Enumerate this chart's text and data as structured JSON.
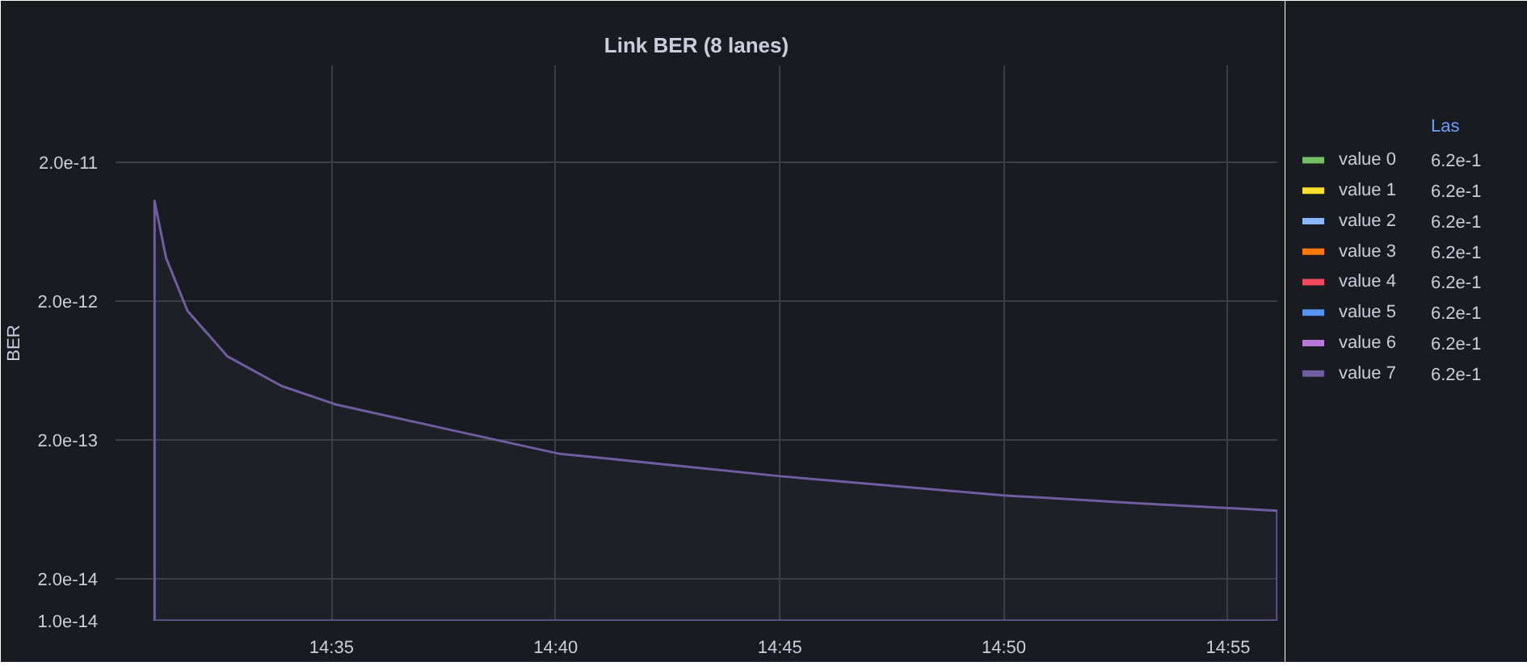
{
  "chart_data": {
    "type": "area",
    "title": "Link BER (8 lanes)",
    "ylabel": "BER",
    "legend_title": "Las",
    "x": [
      14.5175,
      14.5218,
      14.5298,
      14.5447,
      14.5648,
      14.5852,
      14.6263,
      14.6677,
      14.75,
      14.8333,
      14.8847,
      14.935
    ],
    "series": [
      {
        "name": "value 0",
        "color": "#73bf69",
        "values": [
          null,
          null,
          null,
          null,
          null,
          null,
          null,
          null,
          null,
          null,
          null,
          null
        ]
      },
      {
        "name": "value 1",
        "color": "#fade2a",
        "values": [
          null,
          null,
          null,
          null,
          null,
          null,
          null,
          null,
          null,
          null,
          null,
          null
        ]
      },
      {
        "name": "value 2",
        "color": "#8ab8ff",
        "values": [
          null,
          null,
          null,
          null,
          null,
          null,
          null,
          null,
          null,
          null,
          null,
          null
        ]
      },
      {
        "name": "value 3",
        "color": "#ff780a",
        "values": [
          null,
          null,
          null,
          null,
          null,
          null,
          null,
          null,
          null,
          null,
          null,
          null
        ]
      },
      {
        "name": "value 4",
        "color": "#f2495c",
        "values": [
          null,
          null,
          null,
          null,
          null,
          null,
          null,
          null,
          null,
          null,
          null,
          null
        ]
      },
      {
        "name": "value 5",
        "color": "#5794f2",
        "values": [
          null,
          null,
          null,
          null,
          null,
          null,
          null,
          null,
          null,
          null,
          null,
          null
        ]
      },
      {
        "name": "value 6",
        "color": "#b877d9",
        "values": [
          null,
          null,
          null,
          null,
          null,
          null,
          null,
          null,
          null,
          null,
          null,
          null
        ]
      },
      {
        "name": "value 7",
        "color": "#705da0",
        "values": [
          1.06e-11,
          4.1e-12,
          1.7e-12,
          8e-13,
          4.9e-13,
          3.6e-13,
          2.4e-13,
          1.6e-13,
          1.1e-13,
          8e-14,
          7e-14,
          6.2e-14
        ]
      }
    ],
    "annotations": [
      "6.2e-1",
      "6.2e-1",
      "6.2e-1",
      "6.2e-1",
      "6.2e-1",
      "6.2e-1",
      "6.2e-1",
      "6.2e-1"
    ],
    "log": "y",
    "xlim": [
      14.503,
      14.935
    ],
    "ylim": [
      1e-14,
      1e-10
    ],
    "xticks": [
      {
        "value": 14.58333,
        "label": "14:35"
      },
      {
        "value": 14.66667,
        "label": "14:40"
      },
      {
        "value": 14.75,
        "label": "14:45"
      },
      {
        "value": 14.83333,
        "label": "14:50"
      },
      {
        "value": 14.91667,
        "label": "14:55"
      }
    ],
    "yticks": [
      {
        "value": 1e-14,
        "label": "1.0e-14"
      },
      {
        "value": 2e-14,
        "label": "2.0e-14"
      },
      {
        "value": 2e-13,
        "label": "2.0e-13"
      },
      {
        "value": 2e-12,
        "label": "2.0e-12"
      },
      {
        "value": 2e-11,
        "label": "2.0e-11"
      }
    ],
    "grid": true,
    "legend": "right"
  }
}
